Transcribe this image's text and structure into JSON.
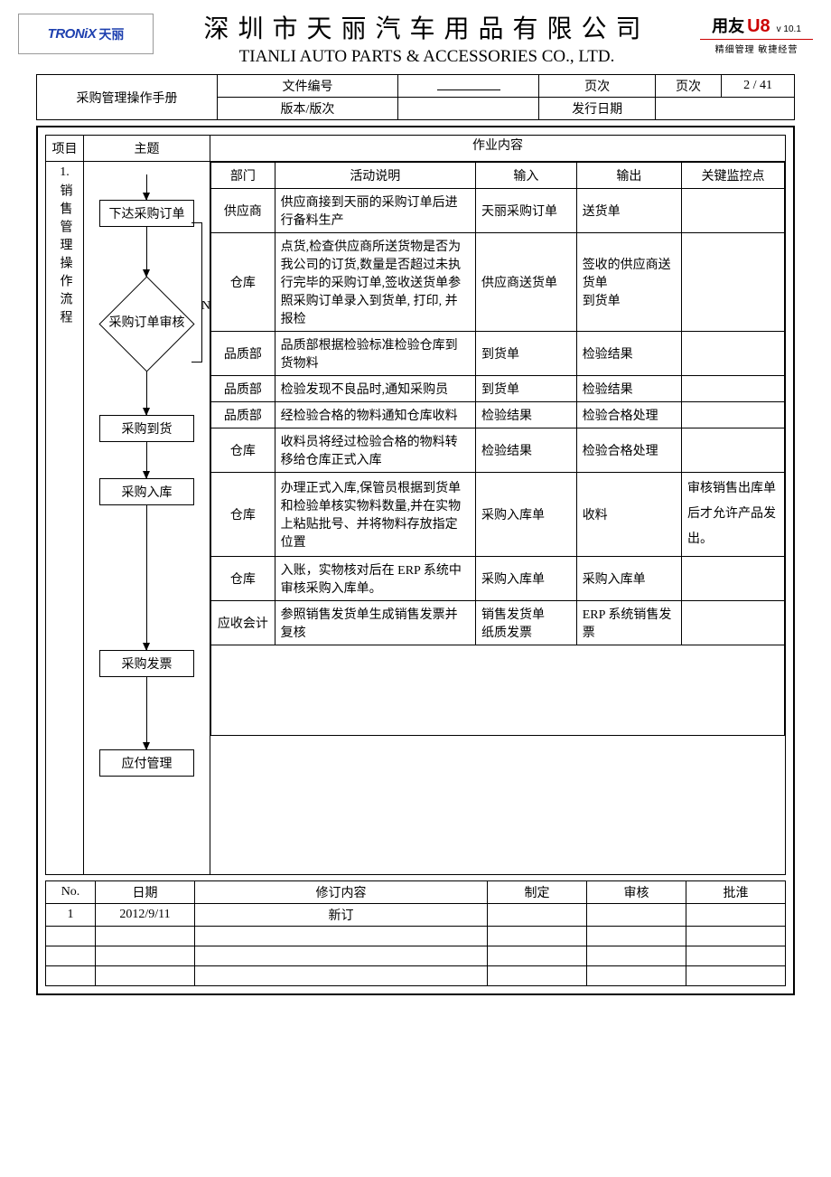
{
  "header": {
    "logo_en": "TRONiX",
    "logo_cn": "天丽",
    "title_cn": "深圳市天丽汽车用品有限公司",
    "title_en": "TIANLI AUTO PARTS & ACCESSORIES CO., LTD.",
    "badge_yy": "用友",
    "badge_u": "U8",
    "badge_version": "v 10.1",
    "badge_subtitle": "精细管理 敏捷经营"
  },
  "meta": {
    "doc_name": "采购管理操作手册",
    "l1": "文件编号",
    "l2": "页次",
    "l3": "页次",
    "l4": "2 / 41",
    "l5": "版本/版次",
    "l6": "",
    "l7": "发行日期",
    "l8": ""
  },
  "columns": {
    "prj": "项目",
    "sub": "主题",
    "content": "作业内容"
  },
  "section": {
    "num": "1.",
    "title": "销售管理操作流程"
  },
  "flow": {
    "b1": "下达采购订单",
    "d1": "采购订单审核",
    "n": "N",
    "y": "Y",
    "b2": "采购到货",
    "b3": "采购入库",
    "b4": "采购发票",
    "b5": "应付管理"
  },
  "contentHeader": {
    "dept": "部门",
    "act": "活动说明",
    "in": "输入",
    "out": "输出",
    "key": "关键监控点"
  },
  "rows": [
    {
      "dept": "供应商",
      "act": "供应商接到天丽的采购订单后进行备料生产",
      "in": "天丽采购订单",
      "out": "送货单",
      "key": ""
    },
    {
      "dept": "仓库",
      "act": "点货,检查供应商所送货物是否为我公司的订货,数量是否超过未执行完毕的采购订单,签收送货单参照采购订单录入到货单, 打印, 并报检",
      "in": "供应商送货单",
      "out": "签收的供应商送货单\n到货单",
      "key": ""
    },
    {
      "dept": "品质部",
      "act": "品质部根据检验标准检验仓库到货物料",
      "in": "到货单",
      "out": "检验结果",
      "key": ""
    },
    {
      "dept": "品质部",
      "act": "检验发现不良品时,通知采购员",
      "in": "到货单",
      "out": "检验结果",
      "key": ""
    },
    {
      "dept": "品质部",
      "act": "经检验合格的物料通知仓库收料",
      "in": "检验结果",
      "out": "检验合格处理",
      "key": ""
    },
    {
      "dept": "仓库",
      "act": "收料员将经过检验合格的物料转移给仓库正式入库",
      "in": "检验结果",
      "out": "检验合格处理",
      "key": ""
    },
    {
      "dept": "仓库",
      "act": "办理正式入库,保管员根据到货单和检验单核实物料数量,并在实物上粘贴批号、并将物料存放指定位置",
      "in": "采购入库单",
      "out": "收料",
      "key": "审核销售出库单后才允许产品发出。"
    },
    {
      "dept": "仓库",
      "act": "入账，实物核对后在 ERP 系统中审核采购入库单。",
      "in": "采购入库单",
      "out": "采购入库单",
      "key": ""
    },
    {
      "dept": "应收会计",
      "act": "参照销售发货单生成销售发票并复核",
      "in": "销售发货单\n纸质发票",
      "out": "ERP 系统销售发票",
      "key": ""
    }
  ],
  "revHeader": {
    "no": "No.",
    "date": "日期",
    "content": "修订内容",
    "make": "制定",
    "check": "审核",
    "approve": "批淮"
  },
  "revRows": [
    {
      "no": "1",
      "date": "2012/9/11",
      "content": "新订",
      "make": "",
      "check": "",
      "approve": ""
    },
    {
      "no": "",
      "date": "",
      "content": "",
      "make": "",
      "check": "",
      "approve": ""
    },
    {
      "no": "",
      "date": "",
      "content": "",
      "make": "",
      "check": "",
      "approve": ""
    },
    {
      "no": "",
      "date": "",
      "content": "",
      "make": "",
      "check": "",
      "approve": ""
    }
  ],
  "colors": {
    "text": "#000000",
    "border": "#000000",
    "logo": "#1e40af",
    "badge_red": "#cc0000",
    "bg": "#ffffff"
  }
}
